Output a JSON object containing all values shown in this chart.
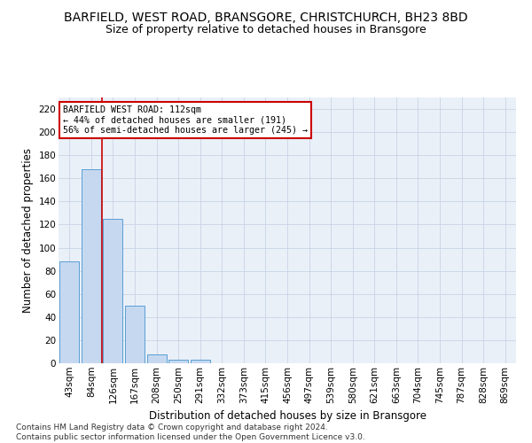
{
  "title": "BARFIELD, WEST ROAD, BRANSGORE, CHRISTCHURCH, BH23 8BD",
  "subtitle": "Size of property relative to detached houses in Bransgore",
  "xlabel": "Distribution of detached houses by size in Bransgore",
  "ylabel": "Number of detached properties",
  "categories": [
    "43sqm",
    "84sqm",
    "126sqm",
    "167sqm",
    "208sqm",
    "250sqm",
    "291sqm",
    "332sqm",
    "373sqm",
    "415sqm",
    "456sqm",
    "497sqm",
    "539sqm",
    "580sqm",
    "621sqm",
    "663sqm",
    "704sqm",
    "745sqm",
    "787sqm",
    "828sqm",
    "869sqm"
  ],
  "values": [
    88,
    168,
    125,
    50,
    8,
    3,
    3,
    0,
    0,
    0,
    0,
    0,
    0,
    0,
    0,
    0,
    0,
    0,
    0,
    0,
    0
  ],
  "bar_color": "#c5d8f0",
  "bar_edge_color": "#5a9fd4",
  "reference_line_color": "#cc0000",
  "annotation_text": "BARFIELD WEST ROAD: 112sqm\n← 44% of detached houses are smaller (191)\n56% of semi-detached houses are larger (245) →",
  "annotation_box_color": "#ffffff",
  "annotation_box_edge_color": "#cc0000",
  "ylim": [
    0,
    230
  ],
  "yticks": [
    0,
    20,
    40,
    60,
    80,
    100,
    120,
    140,
    160,
    180,
    200,
    220
  ],
  "background_color": "#eaf0f8",
  "grid_color": "#c8d4e4",
  "footer_text": "Contains HM Land Registry data © Crown copyright and database right 2024.\nContains public sector information licensed under the Open Government Licence v3.0.",
  "title_fontsize": 10,
  "subtitle_fontsize": 9,
  "axis_label_fontsize": 8.5,
  "tick_fontsize": 7.5,
  "footer_fontsize": 6.5
}
